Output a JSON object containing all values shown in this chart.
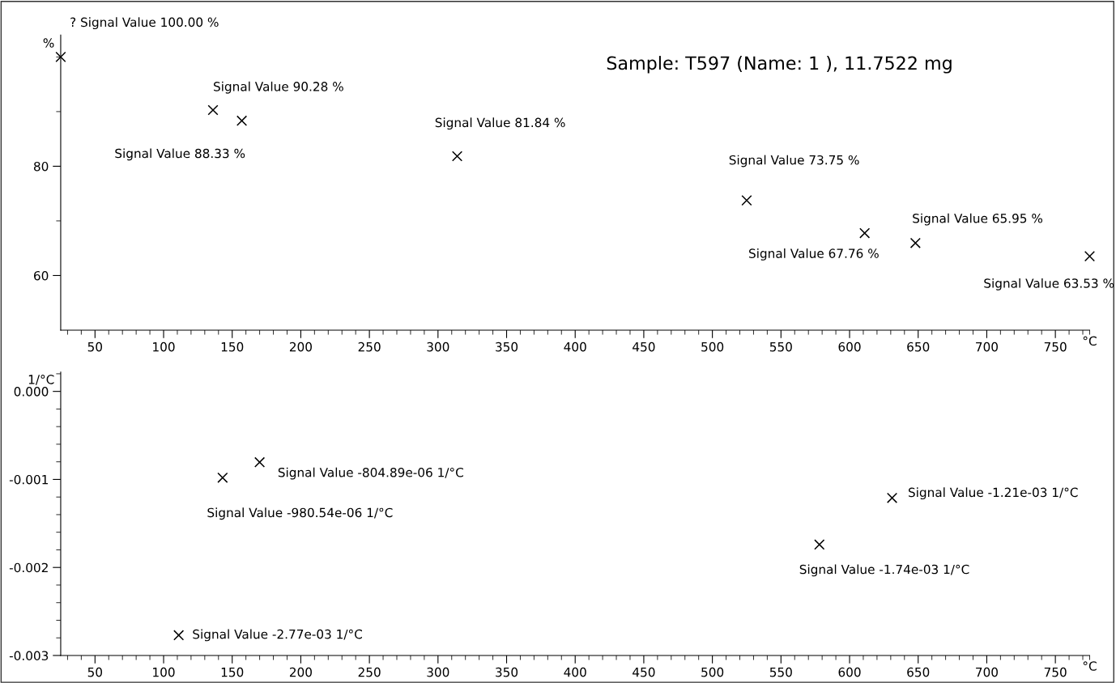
{
  "chart_data": [
    {
      "type": "scatter",
      "title": "Sample: T597 (Name: 1 ), 11.7522 mg",
      "xlabel": "°C",
      "ylabel": "%",
      "marker": "cross",
      "grid": false,
      "legend": false,
      "x": [
        25,
        136,
        157,
        314,
        525,
        611,
        648,
        775
      ],
      "series": [
        {
          "color": "#000000",
          "values": [
            100.0,
            90.28,
            88.33,
            81.84,
            73.75,
            67.76,
            65.95,
            63.53
          ],
          "value_labels": [
            "? Signal Value 100.00 %",
            "Signal Value 90.28 %",
            "Signal Value 88.33 %",
            "Signal Value 81.84 %",
            "Signal Value 73.75 %",
            "Signal Value 67.76 %",
            "Signal Value 65.95 %",
            "Signal Value 63.53 %"
          ]
        }
      ],
      "xlim": [
        25,
        775
      ],
      "xticks": [
        {
          "value": 30,
          "label": null
        },
        {
          "value": 40,
          "label": null
        },
        50,
        {
          "value": 60,
          "label": null
        },
        {
          "value": 70,
          "label": null
        },
        {
          "value": 80,
          "label": null
        },
        {
          "value": 90,
          "label": null
        },
        100,
        {
          "value": 110,
          "label": null
        },
        {
          "value": 120,
          "label": null
        },
        {
          "value": 130,
          "label": null
        },
        {
          "value": 140,
          "label": null
        },
        150,
        {
          "value": 160,
          "label": null
        },
        {
          "value": 170,
          "label": null
        },
        {
          "value": 180,
          "label": null
        },
        {
          "value": 190,
          "label": null
        },
        200,
        {
          "value": 210,
          "label": null
        },
        {
          "value": 220,
          "label": null
        },
        {
          "value": 230,
          "label": null
        },
        {
          "value": 240,
          "label": null
        },
        250,
        {
          "value": 260,
          "label": null
        },
        {
          "value": 270,
          "label": null
        },
        {
          "value": 280,
          "label": null
        },
        {
          "value": 290,
          "label": null
        },
        300,
        {
          "value": 310,
          "label": null
        },
        {
          "value": 320,
          "label": null
        },
        {
          "value": 330,
          "label": null
        },
        {
          "value": 340,
          "label": null
        },
        350,
        {
          "value": 360,
          "label": null
        },
        {
          "value": 370,
          "label": null
        },
        {
          "value": 380,
          "label": null
        },
        {
          "value": 390,
          "label": null
        },
        400,
        {
          "value": 410,
          "label": null
        },
        {
          "value": 420,
          "label": null
        },
        {
          "value": 430,
          "label": null
        },
        {
          "value": 440,
          "label": null
        },
        450,
        {
          "value": 460,
          "label": null
        },
        {
          "value": 470,
          "label": null
        },
        {
          "value": 480,
          "label": null
        },
        {
          "value": 490,
          "label": null
        },
        500,
        {
          "value": 510,
          "label": null
        },
        {
          "value": 520,
          "label": null
        },
        {
          "value": 530,
          "label": null
        },
        {
          "value": 540,
          "label": null
        },
        550,
        {
          "value": 560,
          "label": null
        },
        {
          "value": 570,
          "label": null
        },
        {
          "value": 580,
          "label": null
        },
        {
          "value": 590,
          "label": null
        },
        600,
        {
          "value": 610,
          "label": null
        },
        {
          "value": 620,
          "label": null
        },
        {
          "value": 630,
          "label": null
        },
        {
          "value": 640,
          "label": null
        },
        650,
        {
          "value": 660,
          "label": null
        },
        {
          "value": 670,
          "label": null
        },
        {
          "value": 680,
          "label": null
        },
        {
          "value": 690,
          "label": null
        },
        700,
        {
          "value": 710,
          "label": null
        },
        {
          "value": 720,
          "label": null
        },
        {
          "value": 730,
          "label": null
        },
        {
          "value": 740,
          "label": null
        },
        750,
        {
          "value": 760,
          "label": null
        },
        {
          "value": 770,
          "label": null
        },
        {
          "value": 775,
          "label": null
        }
      ],
      "ylim": [
        50,
        104
      ],
      "yticks": [
        60,
        {
          "value": 70,
          "label": null
        },
        80,
        {
          "value": 90,
          "label": null
        },
        {
          "value": 100,
          "label": null
        }
      ]
    },
    {
      "type": "scatter",
      "xlabel": "°C",
      "ylabel": "1/°C",
      "marker": "cross",
      "grid": false,
      "legend": false,
      "x": [
        111,
        143,
        170,
        578,
        631
      ],
      "series": [
        {
          "color": "#000000",
          "values": [
            -0.00277,
            -0.00098054,
            -0.00080489,
            -0.00174,
            -0.00121
          ],
          "value_labels": [
            "Signal Value -2.77e-03 1/°C",
            "Signal Value -980.54e-06 1/°C",
            "Signal Value -804.89e-06 1/°C",
            "Signal Value -1.74e-03 1/°C",
            "Signal Value -1.21e-03 1/°C"
          ]
        }
      ],
      "xlim": [
        25,
        775
      ],
      "xticks": [
        {
          "value": 30,
          "label": null
        },
        {
          "value": 40,
          "label": null
        },
        50,
        {
          "value": 60,
          "label": null
        },
        {
          "value": 70,
          "label": null
        },
        {
          "value": 80,
          "label": null
        },
        {
          "value": 90,
          "label": null
        },
        100,
        {
          "value": 110,
          "label": null
        },
        {
          "value": 120,
          "label": null
        },
        {
          "value": 130,
          "label": null
        },
        {
          "value": 140,
          "label": null
        },
        150,
        {
          "value": 160,
          "label": null
        },
        {
          "value": 170,
          "label": null
        },
        {
          "value": 180,
          "label": null
        },
        {
          "value": 190,
          "label": null
        },
        200,
        {
          "value": 210,
          "label": null
        },
        {
          "value": 220,
          "label": null
        },
        {
          "value": 230,
          "label": null
        },
        {
          "value": 240,
          "label": null
        },
        250,
        {
          "value": 260,
          "label": null
        },
        {
          "value": 270,
          "label": null
        },
        {
          "value": 280,
          "label": null
        },
        {
          "value": 290,
          "label": null
        },
        300,
        {
          "value": 310,
          "label": null
        },
        {
          "value": 320,
          "label": null
        },
        {
          "value": 330,
          "label": null
        },
        {
          "value": 340,
          "label": null
        },
        350,
        {
          "value": 360,
          "label": null
        },
        {
          "value": 370,
          "label": null
        },
        {
          "value": 380,
          "label": null
        },
        {
          "value": 390,
          "label": null
        },
        400,
        {
          "value": 410,
          "label": null
        },
        {
          "value": 420,
          "label": null
        },
        {
          "value": 430,
          "label": null
        },
        {
          "value": 440,
          "label": null
        },
        450,
        {
          "value": 460,
          "label": null
        },
        {
          "value": 470,
          "label": null
        },
        {
          "value": 480,
          "label": null
        },
        {
          "value": 490,
          "label": null
        },
        500,
        {
          "value": 510,
          "label": null
        },
        {
          "value": 520,
          "label": null
        },
        {
          "value": 530,
          "label": null
        },
        {
          "value": 540,
          "label": null
        },
        550,
        {
          "value": 560,
          "label": null
        },
        {
          "value": 570,
          "label": null
        },
        {
          "value": 580,
          "label": null
        },
        {
          "value": 590,
          "label": null
        },
        600,
        {
          "value": 610,
          "label": null
        },
        {
          "value": 620,
          "label": null
        },
        {
          "value": 630,
          "label": null
        },
        {
          "value": 640,
          "label": null
        },
        650,
        {
          "value": 660,
          "label": null
        },
        {
          "value": 670,
          "label": null
        },
        {
          "value": 680,
          "label": null
        },
        {
          "value": 690,
          "label": null
        },
        700,
        {
          "value": 710,
          "label": null
        },
        {
          "value": 720,
          "label": null
        },
        {
          "value": 730,
          "label": null
        },
        {
          "value": 740,
          "label": null
        },
        750,
        {
          "value": 760,
          "label": null
        },
        {
          "value": 770,
          "label": null
        },
        {
          "value": 775,
          "label": null
        }
      ],
      "ylim": [
        -0.003,
        0.00022
      ],
      "yticks": [
        {
          "value": -0.003,
          "label": "-0.003"
        },
        {
          "value": -0.0028,
          "label": null
        },
        {
          "value": -0.0026,
          "label": null
        },
        {
          "value": -0.0024,
          "label": null
        },
        {
          "value": -0.0022,
          "label": null
        },
        {
          "value": -0.002,
          "label": "-0.002"
        },
        {
          "value": -0.0018,
          "label": null
        },
        {
          "value": -0.0016,
          "label": null
        },
        {
          "value": -0.0014,
          "label": null
        },
        {
          "value": -0.0012,
          "label": null
        },
        {
          "value": -0.001,
          "label": "-0.001"
        },
        {
          "value": -0.0008,
          "label": null
        },
        {
          "value": -0.0006,
          "label": null
        },
        {
          "value": -0.0004,
          "label": null
        },
        {
          "value": -0.0002,
          "label": null
        },
        {
          "value": 0,
          "label": "0.000"
        },
        {
          "value": 0.0002,
          "label": null
        }
      ]
    }
  ]
}
